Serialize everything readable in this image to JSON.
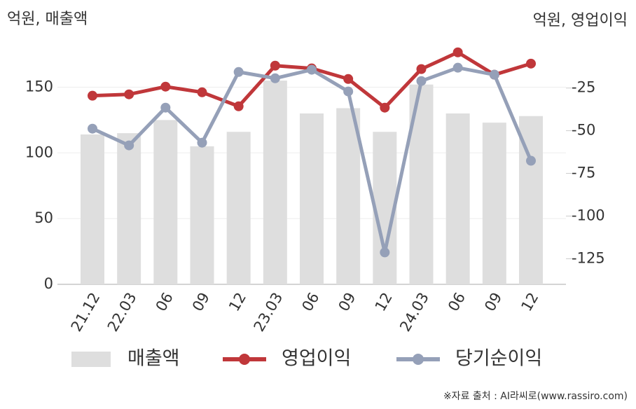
{
  "chart_data": {
    "type": "bar-line",
    "y_label": "억원, 매출액",
    "y2_label": "억원, 영업이익",
    "source": "※자료 출처 : AI라씨로(www.rassiro.com)",
    "categories": [
      "21.12",
      "22.03",
      "06",
      "09",
      "12",
      "23.03",
      "06",
      "09",
      "12",
      "24.03",
      "06",
      "09",
      "12"
    ],
    "series": [
      {
        "name": "매출액",
        "type": "bar",
        "color": "#dedede",
        "values": [
          114,
          115,
          125,
          105,
          116,
          155,
          130,
          134,
          116,
          152,
          130,
          123,
          128
        ]
      },
      {
        "name": "영업이익",
        "type": "line",
        "axis": "y2",
        "color": "#c0373a",
        "values": [
          -29.5,
          -28.7,
          -24.2,
          -27.5,
          -35.7,
          -11.9,
          -13.5,
          -19.7,
          -36.5,
          -13.9,
          -4.1,
          -17.2,
          -10.7
        ]
      },
      {
        "name": "당기순이익",
        "type": "line",
        "axis": "y2",
        "color": "#95a0b8",
        "values": [
          -48.8,
          -58.6,
          -36.5,
          -57,
          -15.6,
          -19.3,
          -14.3,
          -27,
          -121.3,
          -20.9,
          -13.1,
          -17.2,
          -67.6
        ]
      }
    ],
    "ylim": [
      0,
      187
    ],
    "yticks": [
      0,
      50,
      100,
      150
    ],
    "y2lim": [
      -140,
      4
    ],
    "y2ticks": [
      -125,
      -100,
      -75,
      -50,
      -25
    ],
    "grid": true
  }
}
